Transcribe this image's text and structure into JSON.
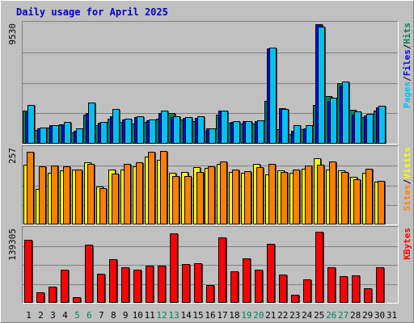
{
  "title": "Daily usage for April 2025",
  "colors": {
    "hits": "#00C0F0",
    "files": "#0000FF",
    "pages": "#00805C",
    "visits": "#FFFF00",
    "sites": "#FF8000",
    "kbytes": "#FF0000",
    "weekend_label": "#00805C",
    "weekday_label": "#000000",
    "title": "#0000C0"
  },
  "chart_data": [
    {
      "type": "bar",
      "title": "Daily usage for April 2025",
      "categories": [
        "1",
        "2",
        "3",
        "4",
        "5",
        "6",
        "7",
        "8",
        "9",
        "10",
        "11",
        "12",
        "13",
        "14",
        "15",
        "16",
        "17",
        "18",
        "19",
        "20",
        "21",
        "22",
        "23",
        "24",
        "25",
        "26",
        "27",
        "28",
        "29",
        "30",
        "31"
      ],
      "weekend_days": [
        "5",
        "6",
        "12",
        "13",
        "19",
        "20",
        "26",
        "27"
      ],
      "ymax_label": "9530",
      "ylim": [
        0,
        9530
      ],
      "legend": [
        "Pages",
        "/",
        "Files",
        "/",
        "Hits"
      ],
      "series": [
        {
          "name": "Hits",
          "values": [
            2610,
            1110,
            1310,
            1560,
            920,
            2290,
            1510,
            2000,
            1720,
            1640,
            1750,
            2000,
            2460,
            1960,
            1810,
            1000,
            2290,
            1680,
            1640,
            1600,
            3420,
            1130,
            780,
            1130,
            3120,
            3780,
            4820,
            2720,
            2140,
            2610,
            0
          ]
        },
        {
          "name": "Files",
          "values": [
            2510,
            1210,
            1460,
            1540,
            1050,
            2460,
            1650,
            2210,
            1910,
            2120,
            1880,
            2440,
            2120,
            2090,
            2090,
            1200,
            2660,
            1710,
            1780,
            1780,
            7590,
            2860,
            1020,
            1210,
            9530,
            3420,
            4630,
            2350,
            2260,
            2920,
            0
          ]
        },
        {
          "name": "Pages",
          "values": [
            3120,
            1310,
            1470,
            1730,
            1230,
            3310,
            1730,
            2760,
            1980,
            2190,
            1950,
            2630,
            2160,
            2120,
            2180,
            1240,
            2630,
            1830,
            1800,
            1860,
            7660,
            2800,
            1510,
            1510,
            9320,
            3670,
            4980,
            2590,
            2400,
            3010,
            0
          ]
        }
      ]
    },
    {
      "type": "bar",
      "categories": [
        "1",
        "2",
        "3",
        "4",
        "5",
        "6",
        "7",
        "8",
        "9",
        "10",
        "11",
        "12",
        "13",
        "14",
        "15",
        "16",
        "17",
        "18",
        "19",
        "20",
        "21",
        "22",
        "23",
        "24",
        "25",
        "26",
        "27",
        "28",
        "29",
        "30",
        "31"
      ],
      "ymax_label": "257",
      "ylim": [
        0,
        257
      ],
      "legend": [
        "Sites",
        "/",
        "Visits"
      ],
      "series": [
        {
          "name": "Visits",
          "values": [
            201,
            119,
            176,
            183,
            186,
            210,
            128,
            187,
            187,
            197,
            231,
            220,
            176,
            178,
            193,
            191,
            205,
            177,
            176,
            205,
            170,
            182,
            174,
            188,
            223,
            186,
            184,
            160,
            176,
            146,
            0
          ]
        },
        {
          "name": "Sites",
          "values": [
            247,
            198,
            199,
            196,
            187,
            206,
            124,
            172,
            205,
            211,
            246,
            250,
            163,
            163,
            178,
            198,
            212,
            187,
            180,
            195,
            204,
            178,
            187,
            199,
            202,
            213,
            177,
            153,
            189,
            148,
            0
          ]
        }
      ]
    },
    {
      "type": "bar",
      "categories": [
        "1",
        "2",
        "3",
        "4",
        "5",
        "6",
        "7",
        "8",
        "9",
        "10",
        "11",
        "12",
        "13",
        "14",
        "15",
        "16",
        "17",
        "18",
        "19",
        "20",
        "21",
        "22",
        "23",
        "24",
        "25",
        "26",
        "27",
        "28",
        "29",
        "30",
        "31"
      ],
      "ymax_label": "139305",
      "ylim": [
        0,
        139305
      ],
      "legend": [
        "KBytes"
      ],
      "series": [
        {
          "name": "KBytes",
          "values": [
            120000,
            20000,
            30000,
            62000,
            10000,
            110000,
            55000,
            82000,
            68000,
            62000,
            70000,
            70000,
            132000,
            74000,
            75000,
            34000,
            124000,
            60000,
            84000,
            62000,
            112000,
            53000,
            15000,
            45000,
            134000,
            68000,
            51000,
            52000,
            28000,
            67000,
            0
          ]
        }
      ]
    }
  ]
}
